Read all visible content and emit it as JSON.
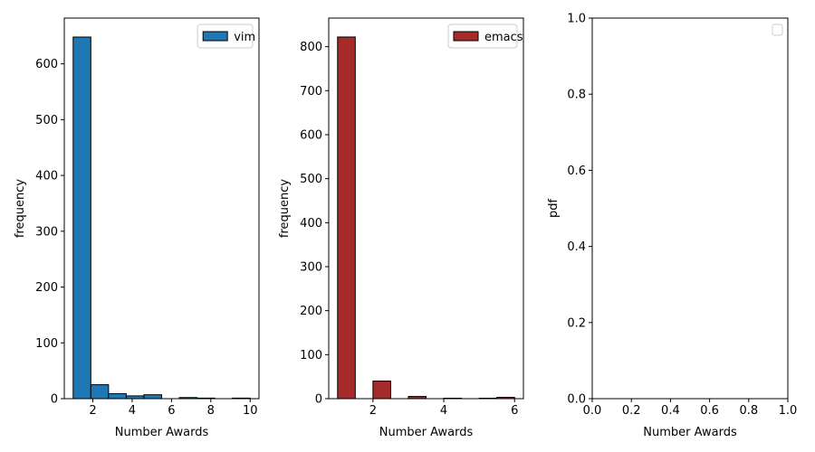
{
  "chart_data": [
    {
      "type": "bar",
      "title": "",
      "xlabel": "Number Awards",
      "ylabel": "frequency",
      "xlim": [
        0.55,
        10.45
      ],
      "ylim": [
        0,
        682
      ],
      "xticks": [
        2,
        4,
        6,
        8,
        10
      ],
      "yticks": [
        0,
        100,
        200,
        300,
        400,
        500,
        600
      ],
      "series": [
        {
          "name": "vim",
          "color": "#1f77b4",
          "bins": [
            {
              "x0": 1.0,
              "x1": 1.9,
              "value": 648
            },
            {
              "x0": 1.9,
              "x1": 2.8,
              "value": 25
            },
            {
              "x0": 2.8,
              "x1": 3.7,
              "value": 9
            },
            {
              "x0": 3.7,
              "x1": 4.6,
              "value": 5
            },
            {
              "x0": 4.6,
              "x1": 5.5,
              "value": 7
            },
            {
              "x0": 5.5,
              "x1": 6.4,
              "value": 0
            },
            {
              "x0": 6.4,
              "x1": 7.3,
              "value": 2
            },
            {
              "x0": 7.3,
              "x1": 8.2,
              "value": 1
            },
            {
              "x0": 8.2,
              "x1": 9.1,
              "value": 0
            },
            {
              "x0": 9.1,
              "x1": 10.0,
              "value": 1
            }
          ]
        }
      ],
      "legend": "upper right",
      "grid": false
    },
    {
      "type": "bar",
      "title": "",
      "xlabel": "Number Awards",
      "ylabel": "frequency",
      "xlim": [
        0.75,
        6.25
      ],
      "ylim": [
        0,
        865
      ],
      "xticks": [
        2,
        4,
        6
      ],
      "yticks": [
        0,
        100,
        200,
        300,
        400,
        500,
        600,
        700,
        800
      ],
      "series": [
        {
          "name": "emacs",
          "color": "#a52a2a",
          "bins": [
            {
              "x0": 1.0,
              "x1": 1.5,
              "value": 822
            },
            {
              "x0": 2.0,
              "x1": 2.5,
              "value": 40
            },
            {
              "x0": 3.0,
              "x1": 3.5,
              "value": 5
            },
            {
              "x0": 4.0,
              "x1": 4.5,
              "value": 1
            },
            {
              "x0": 5.0,
              "x1": 5.5,
              "value": 1
            },
            {
              "x0": 5.5,
              "x1": 6.0,
              "value": 3
            }
          ]
        }
      ],
      "legend": "upper right",
      "grid": false
    },
    {
      "type": "line",
      "title": "",
      "xlabel": "Number Awards",
      "ylabel": "pdf",
      "xlim": [
        0,
        1
      ],
      "ylim": [
        0,
        1
      ],
      "xticks": [
        0.0,
        0.2,
        0.4,
        0.6,
        0.8,
        1.0
      ],
      "yticks": [
        0.0,
        0.2,
        0.4,
        0.6,
        0.8,
        1.0
      ],
      "series": [],
      "legend": "upper right",
      "grid": false
    }
  ]
}
